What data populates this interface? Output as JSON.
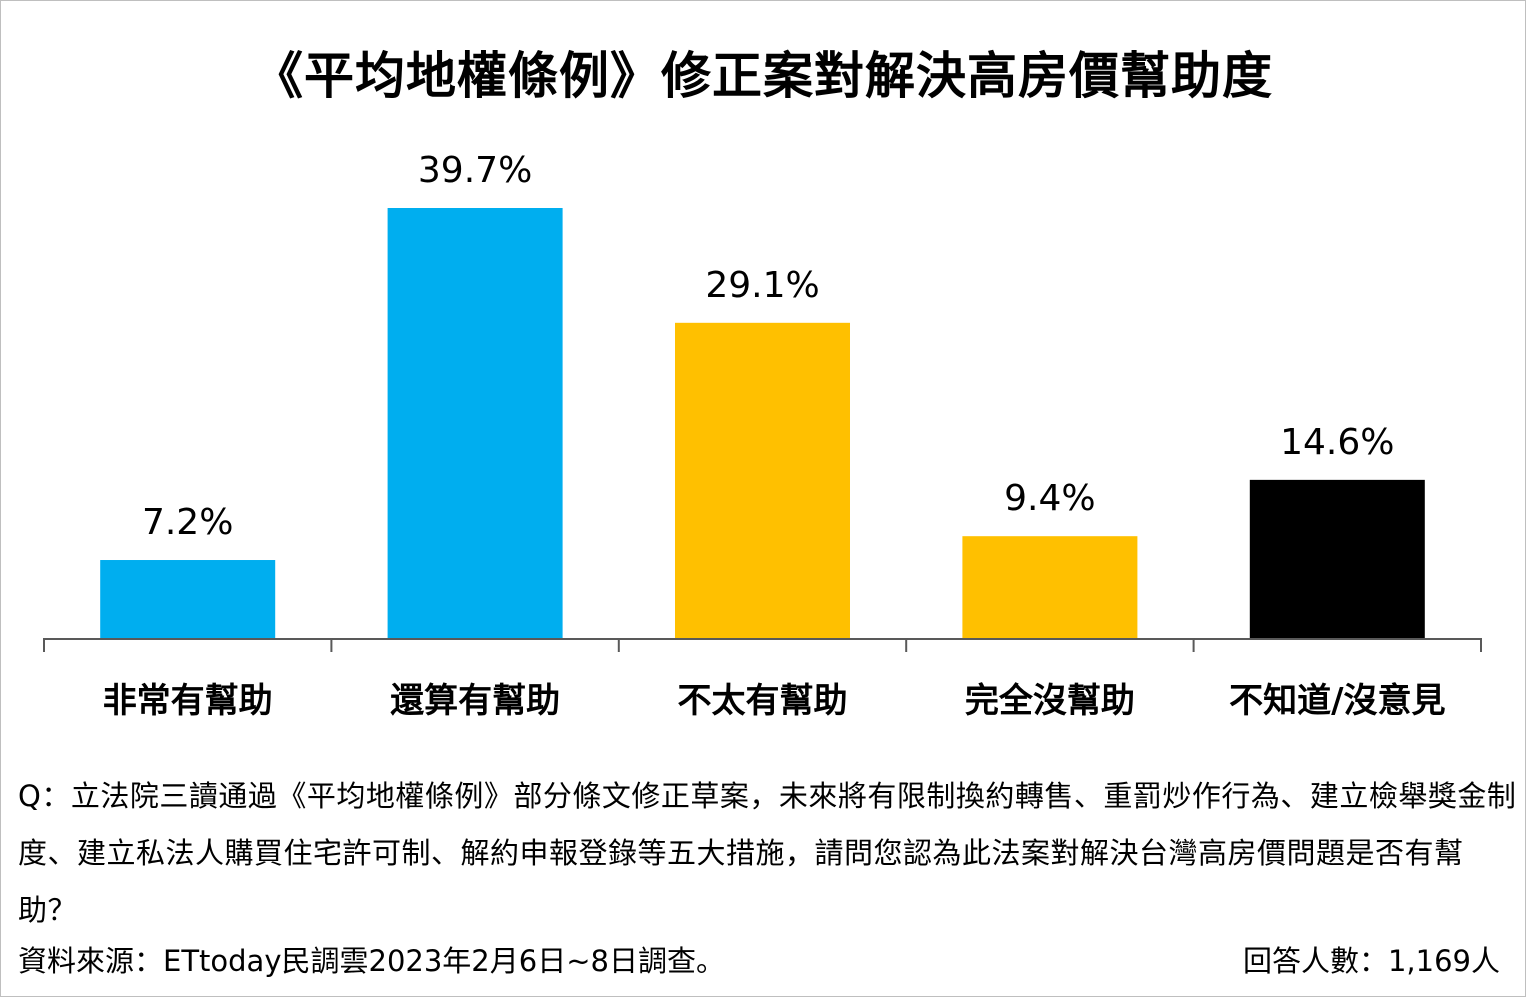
{
  "chart_data": {
    "type": "bar",
    "title": "《平均地權條例》修正案對解決高房價幫助度",
    "categories": [
      "非常有幫助",
      "還算有幫助",
      "不太有幫助",
      "完全沒幫助",
      "不知道/沒意見"
    ],
    "values": [
      7.2,
      39.7,
      29.1,
      9.4,
      14.6
    ],
    "value_labels": [
      "7.2%",
      "39.7%",
      "29.1%",
      "9.4%",
      "14.6%"
    ],
    "colors": [
      "#00AEEF",
      "#00AEEF",
      "#FFC000",
      "#FFC000",
      "#000000"
    ],
    "xlabel": "",
    "ylabel": "",
    "ylim": [
      0,
      40
    ],
    "grid": false
  },
  "footer": {
    "question": "Q：立法院三讀通過《平均地權條例》部分條文修正草案，未來將有限制換約轉售、重罰炒作行為、建立檢舉獎金制度、建立私法人購買住宅許可制、解約申報登錄等五大措施，請問您認為此法案對解決台灣高房價問題是否有幫助？",
    "source": "資料來源：ETtoday民調雲2023年2月6日~8日調查。",
    "respondents": "回答人數：1,169人"
  }
}
